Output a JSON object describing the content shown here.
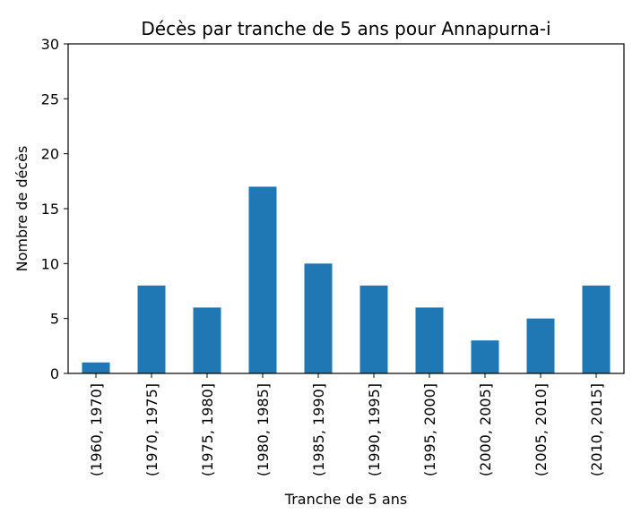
{
  "chart_data": {
    "type": "bar",
    "title": "Décès par tranche de 5 ans pour Annapurna-i",
    "xlabel": "Tranche de 5 ans",
    "ylabel": "Nombre de décès",
    "categories": [
      "(1960, 1970]",
      "(1970, 1975]",
      "(1975, 1980]",
      "(1980, 1985]",
      "(1985, 1990]",
      "(1990, 1995]",
      "(1995, 2000]",
      "(2000, 2005]",
      "(2005, 2010]",
      "(2010, 2015]"
    ],
    "values": [
      1,
      8,
      6,
      17,
      10,
      8,
      6,
      3,
      5,
      8
    ],
    "ylim": [
      0,
      30
    ],
    "yticks": [
      0,
      5,
      10,
      15,
      20,
      25,
      30
    ],
    "grid": false,
    "legend": "none",
    "bar_color": "#1f77b4"
  }
}
